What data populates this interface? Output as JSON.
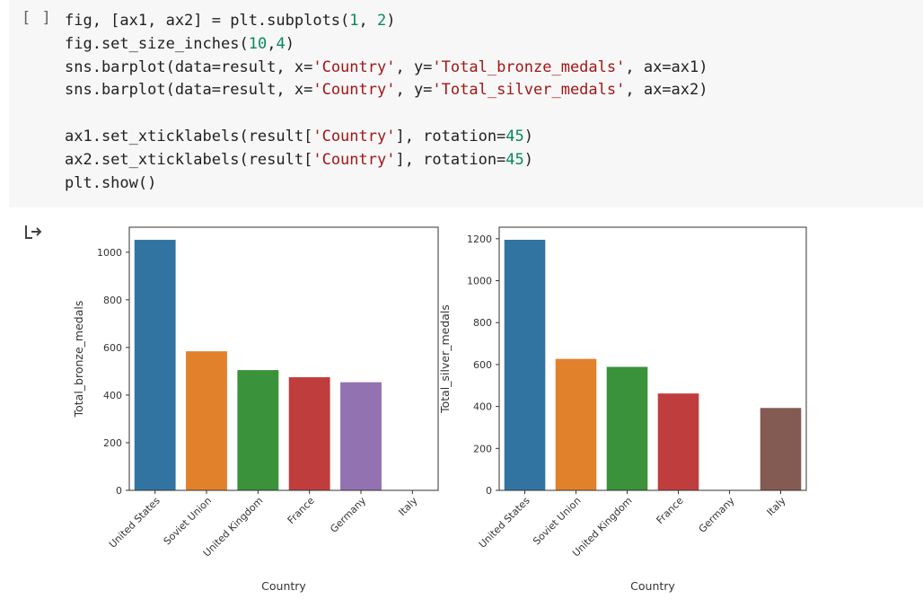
{
  "cell": {
    "run_label": "[ ]",
    "code_lines": [
      [
        {
          "t": "fig, [ax1, ax2] = plt.subplots(",
          "c": ""
        },
        {
          "t": "1",
          "c": "num"
        },
        {
          "t": ", ",
          "c": ""
        },
        {
          "t": "2",
          "c": "num"
        },
        {
          "t": ")",
          "c": ""
        }
      ],
      [
        {
          "t": "fig.set_size_inches(",
          "c": ""
        },
        {
          "t": "10",
          "c": "num"
        },
        {
          "t": ",",
          "c": ""
        },
        {
          "t": "4",
          "c": "num"
        },
        {
          "t": ")",
          "c": ""
        }
      ],
      [
        {
          "t": "sns.barplot(data=result, x=",
          "c": ""
        },
        {
          "t": "'Country'",
          "c": "str"
        },
        {
          "t": ", y=",
          "c": ""
        },
        {
          "t": "'Total_bronze_medals'",
          "c": "str"
        },
        {
          "t": ", ax=ax1)",
          "c": ""
        }
      ],
      [
        {
          "t": "sns.barplot(data=result, x=",
          "c": ""
        },
        {
          "t": "'Country'",
          "c": "str"
        },
        {
          "t": ", y=",
          "c": ""
        },
        {
          "t": "'Total_silver_medals'",
          "c": "str"
        },
        {
          "t": ", ax=ax2)",
          "c": ""
        }
      ],
      [
        {
          "t": "",
          "c": ""
        }
      ],
      [
        {
          "t": "ax1.set_xticklabels(result[",
          "c": ""
        },
        {
          "t": "'Country'",
          "c": "str"
        },
        {
          "t": "], rotation=",
          "c": ""
        },
        {
          "t": "45",
          "c": "num"
        },
        {
          "t": ")",
          "c": ""
        }
      ],
      [
        {
          "t": "ax2.set_xticklabels(result[",
          "c": ""
        },
        {
          "t": "'Country'",
          "c": "str"
        },
        {
          "t": "], rotation=",
          "c": ""
        },
        {
          "t": "45",
          "c": "num"
        },
        {
          "t": ")",
          "c": ""
        }
      ],
      [
        {
          "t": "plt.show()",
          "c": ""
        }
      ]
    ]
  },
  "output": {
    "icon": "output-arrow-icon"
  },
  "chart_data": [
    {
      "type": "bar",
      "categories": [
        "United States",
        "Soviet Union",
        "United Kingdom",
        "France",
        "Germany",
        "Italy"
      ],
      "values": [
        1052,
        584,
        505,
        475,
        454,
        0
      ],
      "colors": [
        "#3274a1",
        "#e1812c",
        "#3a923a",
        "#c03d3e",
        "#9372b2",
        "#845b53"
      ],
      "xlabel": "Country",
      "ylabel": "Total_bronze_medals",
      "ylim": [
        0,
        1105
      ],
      "yticks": [
        0,
        200,
        400,
        600,
        800,
        1000
      ],
      "grid": false
    },
    {
      "type": "bar",
      "categories": [
        "United States",
        "Soviet Union",
        "United Kingdom",
        "France",
        "Germany",
        "Italy"
      ],
      "values": [
        1195,
        627,
        589,
        462,
        0,
        393
      ],
      "colors": [
        "#3274a1",
        "#e1812c",
        "#3a923a",
        "#c03d3e",
        "#9372b2",
        "#845b53"
      ],
      "xlabel": "Country",
      "ylabel": "Total_silver_medals",
      "ylim": [
        0,
        1255
      ],
      "yticks": [
        0,
        200,
        400,
        600,
        800,
        1000,
        1200
      ],
      "grid": false
    }
  ]
}
